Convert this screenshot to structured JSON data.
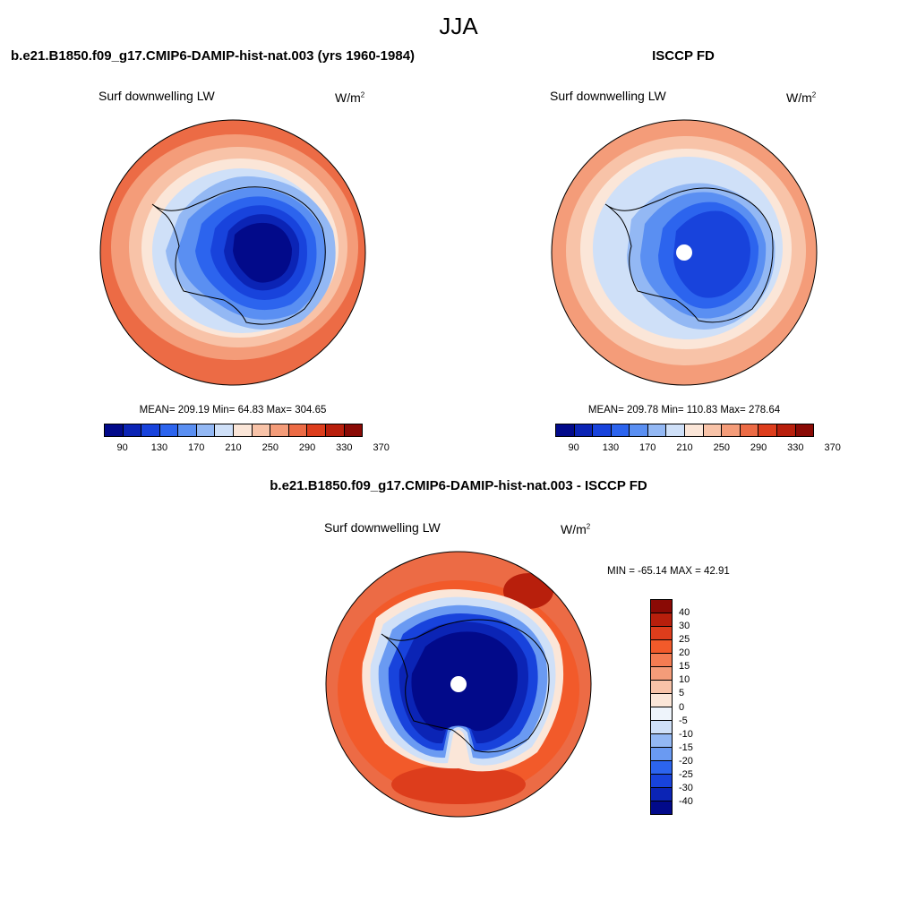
{
  "figure": {
    "season": "JJA"
  },
  "panels": [
    {
      "title": "b.e21.B1850.f09_g17.CMIP6-DAMIP-hist-nat.003 (yrs 1960-1984)",
      "variable": "Surf downwelling LW",
      "units": "W/m",
      "units_exp": "2",
      "stats": "MEAN= 209.19  Min=  64.83  Max= 304.65",
      "colorbar_ticks": [
        "90",
        "130",
        "170",
        "210",
        "250",
        "290",
        "330",
        "370"
      ],
      "has_pole_hole": false
    },
    {
      "title": "ISCCP FD",
      "variable": "Surf downwelling LW",
      "units": "W/m",
      "units_exp": "2",
      "stats": "MEAN= 209.78  Min= 110.83  Max= 278.64",
      "colorbar_ticks": [
        "90",
        "130",
        "170",
        "210",
        "250",
        "290",
        "330",
        "370"
      ],
      "has_pole_hole": true
    },
    {
      "title": "b.e21.B1850.f09_g17.CMIP6-DAMIP-hist-nat.003 - ISCCP FD",
      "variable": "Surf downwelling LW",
      "units": "W/m",
      "units_exp": "2",
      "stats": "MIN = -65.14 MAX =  42.91",
      "colorbar_ticks": [
        "40",
        "30",
        "25",
        "20",
        "15",
        "10",
        "5",
        "0",
        "-5",
        "-10",
        "-15",
        "-20",
        "-25",
        "-30",
        "-40"
      ],
      "has_pole_hole": true
    }
  ],
  "colors": {
    "abs_scale": [
      "#020a8a",
      "#0b24b5",
      "#1843dc",
      "#2c64ee",
      "#5a8ff2",
      "#93b8f4",
      "#cfe0f8",
      "#fbe6d8",
      "#f8c3a8",
      "#f49c79",
      "#ec6b45",
      "#dd3d1c",
      "#b81f0c",
      "#8a0a05"
    ],
    "diff_scale": [
      "#8a0a05",
      "#b81f0c",
      "#dd3d1c",
      "#f25a2a",
      "#f47c52",
      "#f49c79",
      "#f8c3a8",
      "#fbe6d8",
      "#eef4fb",
      "#cfe0f8",
      "#93b8f4",
      "#6a9af2",
      "#2c64ee",
      "#1843dc",
      "#0b24b5",
      "#020a8a"
    ]
  }
}
